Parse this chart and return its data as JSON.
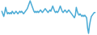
{
  "values": [
    5,
    3,
    1,
    4,
    8,
    5,
    3,
    4,
    3,
    4,
    3,
    5,
    4,
    3,
    4,
    5,
    4,
    3,
    4,
    5,
    4,
    5,
    4,
    3,
    4,
    5,
    6,
    7,
    9,
    11,
    13,
    11,
    9,
    7,
    5,
    4,
    5,
    4,
    5,
    4,
    5,
    6,
    5,
    4,
    5,
    6,
    7,
    6,
    5,
    4,
    5,
    6,
    5,
    7,
    9,
    7,
    5,
    4,
    5,
    4,
    5,
    7,
    9,
    7,
    5,
    4,
    5,
    6,
    5,
    4,
    5,
    6,
    5,
    4,
    3,
    2,
    1,
    0,
    2,
    8,
    5,
    3,
    2,
    3,
    2,
    1,
    2,
    1,
    2,
    1,
    0,
    -8,
    -12,
    -6,
    -2,
    1,
    2,
    3,
    4,
    4
  ],
  "line_color": "#4dacd6",
  "background_color": "#ffffff",
  "linewidth": 1.1
}
